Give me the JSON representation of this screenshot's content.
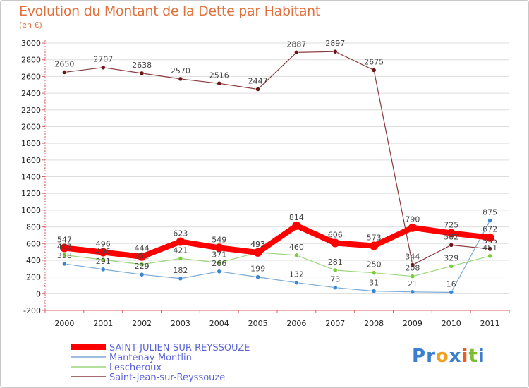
{
  "chart_data": {
    "type": "line",
    "title": "Evolution du Montant de la Dette par Habitant",
    "subtitle": "(en €)",
    "xlabel": "",
    "ylabel": "",
    "ylim": [
      -200,
      3000
    ],
    "yticks": [
      "-200",
      "0",
      "200",
      "400",
      "600",
      "800",
      "1000",
      "1200",
      "1400",
      "1600",
      "1800",
      "2000",
      "2200",
      "2400",
      "2600",
      "2800",
      "3000"
    ],
    "categories": [
      "2000",
      "2001",
      "2002",
      "2003",
      "2004",
      "2005",
      "2006",
      "2007",
      "2008",
      "2009",
      "2010",
      "2011"
    ],
    "grid": "horizontal",
    "legend_position": "bottom-left",
    "series": [
      {
        "name": "SAINT-JULIEN-SUR-REYSSOUZE",
        "color": "#ff0000",
        "values": [
          547,
          496,
          444,
          623,
          549,
          493,
          814,
          606,
          573,
          790,
          725,
          672
        ],
        "labels": [
          "547",
          "496",
          "444",
          "623",
          "549",
          "493",
          "814",
          "606",
          "573",
          "790",
          "725",
          "672"
        ]
      },
      {
        "name": "Mantenay-Montlin",
        "color": "#5b9bd5",
        "values": [
          358,
          291,
          229,
          182,
          266,
          199,
          132,
          73,
          31,
          21,
          16,
          875
        ],
        "labels": [
          "358",
          "291",
          "229",
          "182",
          "266",
          "199",
          "132",
          "73",
          "31",
          "21",
          "16",
          "875"
        ]
      },
      {
        "name": "Lescheroux",
        "color": "#8fd16a",
        "values": [
          463,
          406,
          351,
          421,
          371,
          493,
          460,
          281,
          250,
          208,
          329,
          451
        ],
        "labels": [
          "463",
          "406",
          "351",
          "421",
          "371",
          "493",
          "460",
          "281",
          "250",
          "208",
          "329",
          "451"
        ]
      },
      {
        "name": "Saint-Jean-sur-Reyssouze",
        "color": "#7a2328",
        "values": [
          2650,
          2707,
          2638,
          2570,
          2516,
          2447,
          2887,
          2897,
          2675,
          344,
          582,
          535
        ],
        "labels": [
          "2650",
          "2707",
          "2638",
          "2570",
          "2516",
          "2447",
          "2887",
          "2897",
          "2675",
          "344",
          "582",
          "535"
        ]
      }
    ]
  },
  "logo": {
    "letters": [
      "P",
      "r",
      "o",
      "x",
      "i",
      "t",
      "i"
    ],
    "colors": [
      "#3a7fd0",
      "#3a7fd0",
      "#f0a020",
      "#3a7fd0",
      "#ef5a28",
      "#7bbd2e",
      "#3a7fd0"
    ]
  }
}
